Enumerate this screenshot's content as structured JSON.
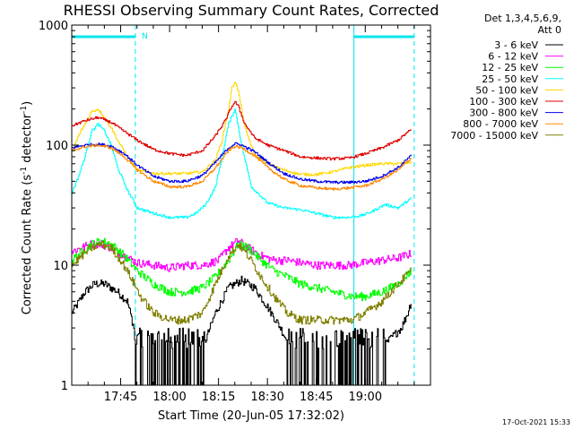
{
  "chart_data": {
    "type": "line",
    "title": "RHESSI Observing Summary Count Rates, Corrected",
    "xlabel": "Start Time (20-Jun-05 17:32:02)",
    "ylabel_main": "Corrected Count Rate (s",
    "ylabel_sup1": "-1",
    "ylabel_mid": " detector",
    "ylabel_sup2": "-1",
    "ylabel_end": ")",
    "yscale": "log",
    "ylim": [
      1,
      1000
    ],
    "xlim_minutes": [
      0,
      110
    ],
    "x_ticks": [
      {
        "m": 15,
        "label": "17:45"
      },
      {
        "m": 30,
        "label": "18:00"
      },
      {
        "m": 45,
        "label": "18:15"
      },
      {
        "m": 60,
        "label": "18:30"
      },
      {
        "m": 75,
        "label": "18:45"
      },
      {
        "m": 90,
        "label": "19:00"
      }
    ],
    "y_tick_labels": [
      {
        "v": 1,
        "label": "1"
      },
      {
        "v": 10,
        "label": "10"
      },
      {
        "v": 100,
        "label": "100"
      },
      {
        "v": 1000,
        "label": "1000"
      }
    ],
    "legend_header": [
      "Det 1,3,4,5,6,9,",
      "Att 0"
    ],
    "legend_placement": "right",
    "attenuator_marker": "N",
    "timestamp": "17-Oct-2021 15:33",
    "vertical_lines": {
      "solid": [
        0,
        86.5
      ],
      "dashed": [
        19.5,
        105
      ]
    },
    "series": [
      {
        "name": "3 - 6 keV",
        "color": "#000000",
        "x": [
          0,
          4,
          7,
          10,
          14,
          17,
          19,
          20,
          25,
          30,
          36,
          40,
          44,
          48,
          52,
          56,
          60,
          64,
          68,
          72,
          76,
          80,
          85,
          90,
          95,
          98,
          101,
          103,
          104
        ],
        "y": [
          4,
          6,
          7,
          7,
          6,
          5,
          3,
          1.2,
          1,
          1,
          1.2,
          2,
          4,
          6.5,
          7.5,
          6.5,
          4.5,
          3,
          1.8,
          1.2,
          1.2,
          1.2,
          1.5,
          1.5,
          2,
          2.5,
          3,
          4,
          5
        ]
      },
      {
        "name": "6 - 12 keV",
        "color": "#ff00ff",
        "x": [
          0,
          3,
          6,
          9,
          12,
          16,
          20,
          25,
          30,
          35,
          40,
          45,
          48,
          51,
          54,
          58,
          62,
          66,
          70,
          75,
          80,
          85,
          90,
          95,
          100,
          104
        ],
        "y": [
          13,
          14,
          15,
          15,
          14,
          12,
          10.5,
          10,
          9.5,
          10,
          10,
          11,
          14,
          16,
          14,
          12,
          11,
          11,
          10.5,
          10,
          10,
          10,
          10.5,
          11,
          11.5,
          12.5
        ]
      },
      {
        "name": "12 - 25 keV",
        "color": "#00ff00",
        "x": [
          0,
          3,
          6,
          9,
          12,
          16,
          20,
          25,
          30,
          35,
          40,
          44,
          48,
          51,
          54,
          58,
          62,
          66,
          70,
          75,
          80,
          86,
          90,
          95,
          100,
          104
        ],
        "y": [
          11,
          13,
          15,
          16,
          15,
          12,
          9,
          7,
          6,
          6,
          6.5,
          8,
          11,
          15,
          14,
          11,
          9,
          8,
          7,
          6.5,
          6,
          5.5,
          5.5,
          6,
          7,
          9
        ]
      },
      {
        "name": "25 - 50 keV",
        "color": "#00ffff",
        "x": [
          0,
          2,
          4,
          6,
          8,
          10,
          12,
          14,
          17,
          20,
          25,
          30,
          35,
          38,
          41,
          44,
          46,
          48,
          50,
          52,
          55,
          60,
          65,
          70,
          75,
          80,
          85,
          89,
          92,
          96,
          100,
          104
        ],
        "y": [
          40,
          55,
          80,
          130,
          150,
          130,
          100,
          65,
          42,
          30,
          27,
          25,
          25,
          27,
          32,
          45,
          80,
          150,
          200,
          100,
          45,
          33,
          30,
          29,
          27,
          25,
          25,
          26,
          28,
          32,
          30,
          36
        ]
      },
      {
        "name": "50 - 100 keV",
        "color": "#ffd700",
        "x": [
          0,
          2,
          4,
          6,
          8,
          10,
          12,
          14,
          17,
          20,
          25,
          30,
          35,
          40,
          44,
          46,
          48,
          49,
          50,
          51,
          53,
          56,
          60,
          65,
          70,
          75,
          80,
          85,
          90,
          95,
          100,
          104
        ],
        "y": [
          88,
          120,
          150,
          190,
          200,
          170,
          140,
          110,
          80,
          62,
          58,
          58,
          58,
          60,
          75,
          110,
          200,
          300,
          340,
          280,
          140,
          82,
          70,
          62,
          57,
          57,
          60,
          65,
          68,
          70,
          70,
          72
        ]
      },
      {
        "name": "100 - 300 keV",
        "color": "#e00000",
        "x": [
          0,
          4,
          8,
          12,
          16,
          20,
          25,
          30,
          35,
          40,
          44,
          47,
          49,
          50,
          51,
          53,
          56,
          60,
          65,
          70,
          75,
          80,
          85,
          90,
          95,
          100,
          104
        ],
        "y": [
          145,
          160,
          170,
          155,
          130,
          110,
          92,
          85,
          82,
          90,
          120,
          160,
          210,
          230,
          210,
          150,
          115,
          100,
          90,
          80,
          78,
          77,
          78,
          85,
          95,
          110,
          135
        ]
      },
      {
        "name": "300 - 800 keV",
        "color": "#0000ee",
        "x": [
          0,
          4,
          8,
          12,
          16,
          20,
          25,
          30,
          35,
          40,
          44,
          48,
          50,
          52,
          56,
          60,
          65,
          70,
          75,
          80,
          85,
          90,
          95,
          100,
          104
        ],
        "y": [
          95,
          100,
          102,
          98,
          85,
          68,
          55,
          50,
          50,
          56,
          72,
          95,
          103,
          100,
          88,
          72,
          58,
          52,
          50,
          49,
          49,
          50,
          55,
          65,
          82
        ]
      },
      {
        "name": "800 - 7000 keV",
        "color": "#ff8800",
        "x": [
          0,
          4,
          8,
          12,
          16,
          20,
          25,
          30,
          35,
          40,
          44,
          48,
          50,
          52,
          56,
          60,
          65,
          70,
          75,
          80,
          85,
          90,
          95,
          100,
          104
        ],
        "y": [
          90,
          97,
          100,
          95,
          80,
          62,
          50,
          45,
          45,
          50,
          65,
          90,
          98,
          95,
          82,
          65,
          52,
          46,
          44,
          43,
          44,
          46,
          52,
          62,
          78
        ]
      },
      {
        "name": "7000 - 15000 keV",
        "color": "#808000",
        "x": [
          0,
          3,
          6,
          9,
          12,
          15,
          18,
          21,
          25,
          30,
          35,
          40,
          44,
          48,
          51,
          54,
          58,
          62,
          66,
          70,
          75,
          80,
          86,
          90,
          95,
          100,
          104
        ],
        "y": [
          10,
          12,
          14,
          15,
          14,
          11,
          8,
          5.5,
          4,
          3.5,
          3.5,
          4,
          7,
          12,
          15,
          12,
          8,
          5.5,
          4,
          3.5,
          3.5,
          3.5,
          3.5,
          4,
          5,
          7,
          9
        ]
      }
    ]
  }
}
